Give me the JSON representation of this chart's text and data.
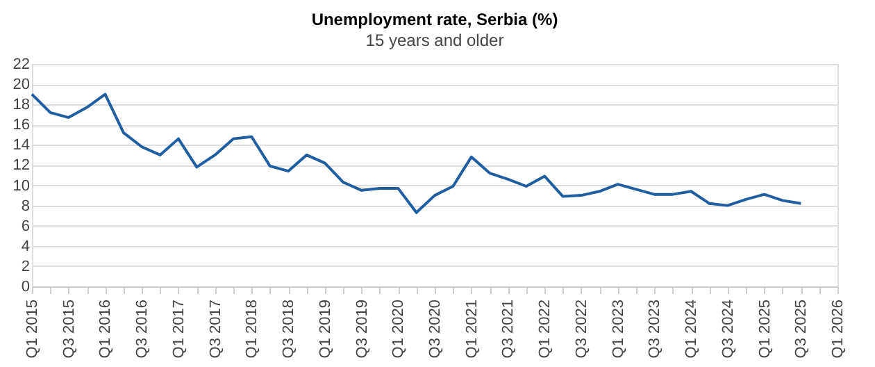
{
  "chart_data": {
    "type": "line",
    "title": "Unemployment rate, Serbia (%)",
    "subtitle": "15 years and older",
    "categories": [
      "Q1 2015",
      null,
      "Q3 2015",
      null,
      "Q1 2016",
      null,
      "Q3 2016",
      null,
      "Q1 2017",
      null,
      "Q3 2017",
      null,
      "Q1 2018",
      null,
      "Q3 2018",
      null,
      "Q1 2019",
      null,
      "Q3 2019",
      null,
      "Q1 2020",
      null,
      "Q3 2020",
      null,
      "Q1 2021",
      null,
      "Q3 2021",
      null,
      "Q1 2022",
      null,
      "Q3 2022",
      null,
      "Q1 2023",
      null,
      "Q3 2023",
      null,
      "Q1 2024",
      null,
      "Q3 2024",
      null,
      "Q1 2025",
      null,
      "Q3 2025",
      null,
      "Q1 2026"
    ],
    "series": [
      {
        "color": "#1f5fa0",
        "values": [
          19.0,
          17.2,
          16.7,
          17.7,
          19.0,
          15.2,
          13.8,
          13.0,
          14.6,
          11.8,
          13.0,
          14.6,
          14.8,
          11.9,
          11.4,
          13.0,
          12.2,
          10.3,
          9.5,
          9.7,
          9.7,
          7.3,
          9.0,
          9.9,
          12.8,
          11.2,
          10.6,
          9.9,
          10.9,
          8.9,
          9.0,
          9.4,
          10.1,
          9.6,
          9.1,
          9.1,
          9.4,
          8.2,
          8.0,
          8.6,
          9.1,
          8.5,
          8.2,
          null,
          null
        ]
      }
    ],
    "ylim": [
      0,
      22
    ],
    "yticks": [
      0,
      2,
      4,
      6,
      8,
      10,
      12,
      14,
      16,
      18,
      20,
      22
    ],
    "grid": "y",
    "marker": "none",
    "line_style": "solid",
    "legend": false
  }
}
